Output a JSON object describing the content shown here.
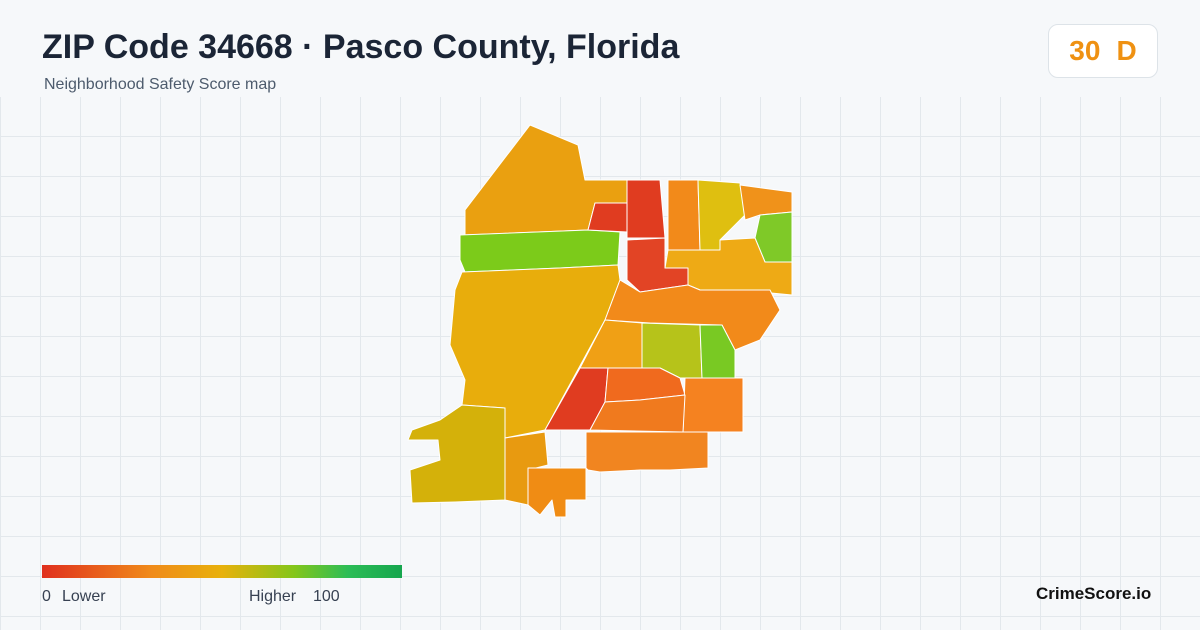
{
  "header": {
    "title": "ZIP Code 34668 · Pasco County, Florida",
    "subtitle": "Neighborhood Safety Score map"
  },
  "badge": {
    "score": 30,
    "grade": "D"
  },
  "legend": {
    "min": 0,
    "min_label": "Lower",
    "max_label": "Higher",
    "max": 100
  },
  "brand": "CrimeScore.io"
}
